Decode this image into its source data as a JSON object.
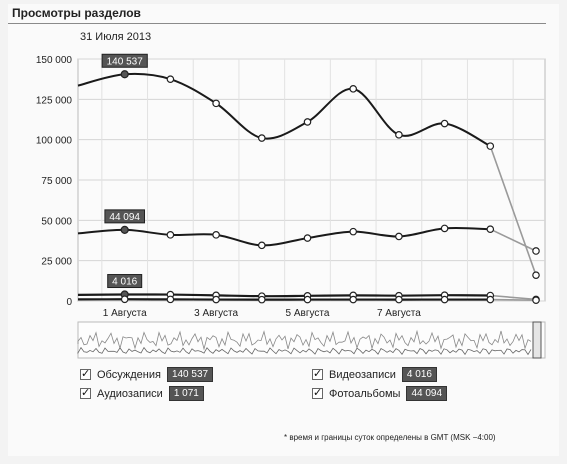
{
  "page": {
    "title": "Просмотры разделов",
    "date_label": "31 Июля 2013"
  },
  "chart_data": {
    "type": "line",
    "y_ticks": [
      "150 000",
      "125 000",
      "100 000",
      "75 000",
      "50 000",
      "25 000",
      "0"
    ],
    "ylim": [
      0,
      150000
    ],
    "x_tick_labels": [
      "1 Августа",
      "3 Августа",
      "5 Августа",
      "7 Августа"
    ],
    "x_tick_indices": [
      1,
      3,
      5,
      7
    ],
    "series": [
      {
        "name": "Обсуждения",
        "color": "#1a1a1a",
        "values": [
          null,
          140537,
          137500,
          122500,
          101000,
          111000,
          131500,
          103000,
          110000,
          96000,
          16000
        ],
        "highlight_index": 1,
        "highlight_label": "140 537"
      },
      {
        "name": "Фотоальбомы",
        "color": "#1a1a1a",
        "values": [
          null,
          44094,
          41000,
          41000,
          34500,
          39000,
          43000,
          40000,
          45000,
          44500,
          31000
        ],
        "highlight_index": 1,
        "highlight_label": "44 094"
      },
      {
        "name": "Видеозаписи",
        "color": "#1a1a1a",
        "values": [
          null,
          4016,
          4000,
          3500,
          3000,
          3200,
          3500,
          3300,
          3600,
          3400,
          1000
        ],
        "highlight_index": 1,
        "highlight_label": "4 016"
      },
      {
        "name": "Аудиозаписи",
        "color": "#1a1a1a",
        "values": [
          null,
          1071,
          1000,
          900,
          850,
          880,
          900,
          870,
          900,
          880,
          500
        ],
        "highlight_index": null,
        "highlight_label": ""
      }
    ],
    "grid": true
  },
  "legend": {
    "items": [
      {
        "label": "Обсуждения",
        "value": "140 537"
      },
      {
        "label": "Аудиозаписи",
        "value": "1 071"
      },
      {
        "label": "Видеозаписи",
        "value": "4 016"
      },
      {
        "label": "Фотоальбомы",
        "value": "44 094"
      }
    ]
  },
  "footnote": "* время и границы суток определены в GMT (MSK −4:00)"
}
